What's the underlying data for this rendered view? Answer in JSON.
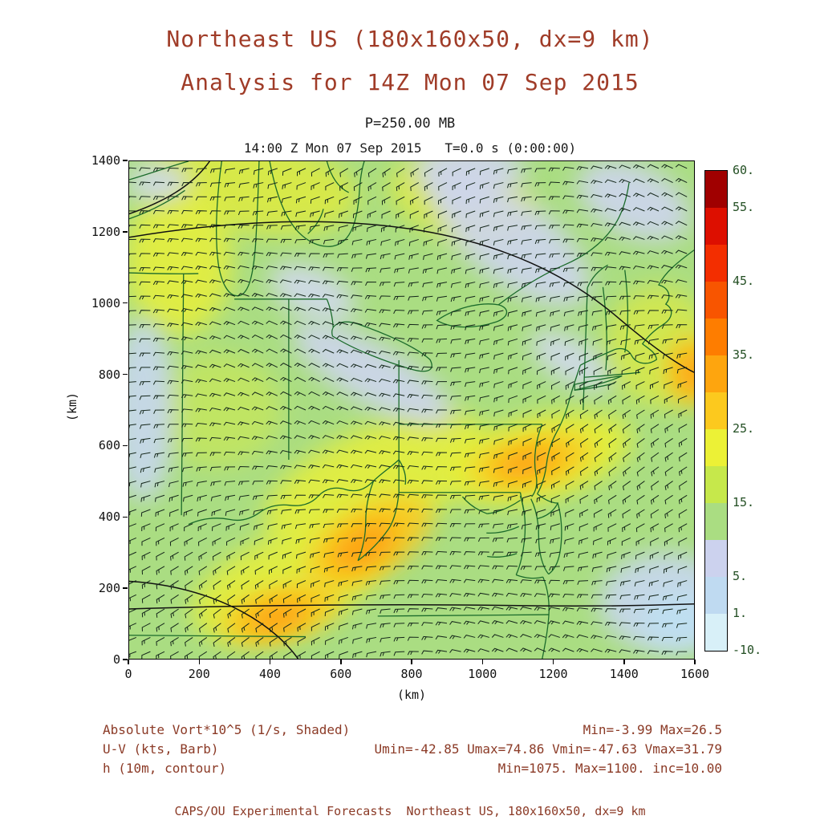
{
  "header": {
    "title_line1": "Northeast US (180x160x50, dx=9 km)",
    "title_line2": "Analysis for 14Z Mon 07 Sep 2015",
    "pressure_level": "P=250.00 MB",
    "time_line": "14:00 Z Mon 07 Sep 2015   T=0.0 s (0:00:00)"
  },
  "legend": {
    "rows": [
      {
        "left": "Absolute Vort*10^5 (1/s, Shaded)",
        "right": "Min=-3.99 Max=26.5"
      },
      {
        "left": "U-V (kts, Barb)",
        "right": "Umin=-42.85 Umax=74.86 Vmin=-47.63 Vmax=31.79"
      },
      {
        "left": "h (10m, contour)",
        "right": "Min=1075. Max=1100. inc=10.00"
      }
    ]
  },
  "footer": {
    "text": "CAPS/OU Experimental Forecasts  Northeast US, 180x160x50, dx=9 km"
  },
  "chart_data": {
    "type": "heatmap",
    "subtype": "meteorological map: shaded vorticity + wind barbs + height contours",
    "domain_name": "Northeast US",
    "grid": "180x160x50, dx=9 km",
    "pressure_mb": 250.0,
    "valid_time": "14:00 Z Mon 07 Sep 2015",
    "forecast_t": "T=0.0 s (0:00:00)",
    "xlabel": "(km)",
    "ylabel": "(km)",
    "xlim": [
      0,
      1600
    ],
    "ylim": [
      0,
      1400
    ],
    "xticks": [
      0,
      200,
      400,
      600,
      800,
      1000,
      1200,
      1400,
      1600
    ],
    "yticks": [
      0,
      200,
      400,
      600,
      800,
      1000,
      1200,
      1400
    ],
    "fields": [
      {
        "name": "Absolute Vort*10^5",
        "units": "1/s",
        "style": "Shaded",
        "min": -3.99,
        "max": 26.5
      },
      {
        "name": "U-V",
        "units": "kts",
        "style": "Barb",
        "umin": -42.85,
        "umax": 74.86,
        "vmin": -47.63,
        "vmax": 31.79
      },
      {
        "name": "h",
        "units": "10m",
        "style": "contour",
        "min": 1075,
        "max": 1100,
        "inc": 10.0
      }
    ],
    "colors": {
      "base_fill": "#aadd82",
      "geography": "#1b6b2b",
      "contour": "#111111",
      "barb": "#14261a",
      "title_text": "#a03c28",
      "legend_text": "#8b3a26",
      "colorbar_label": "#234f23"
    },
    "colorbar": {
      "levels": [
        -10,
        1,
        5,
        10,
        15,
        20,
        25,
        30,
        35,
        40,
        45,
        50,
        55,
        60
      ],
      "colors_bottom_to_top": [
        "#d8f0f8",
        "#bfdaf1",
        "#ccd2ee",
        "#aadd82",
        "#c6e84b",
        "#ecf136",
        "#fcc91e",
        "#fea50e",
        "#fe7d00",
        "#f85500",
        "#f32e00",
        "#dd0f00",
        "#a00000"
      ],
      "labels": [
        {
          "text": "60.",
          "level": 60
        },
        {
          "text": "55.",
          "level": 55
        },
        {
          "text": "45.",
          "level": 45
        },
        {
          "text": "35.",
          "level": 35
        },
        {
          "text": "25.",
          "level": 25
        },
        {
          "text": "15.",
          "level": 15
        },
        {
          "text": "5.",
          "level": 5
        },
        {
          "text": "1.",
          "level": 1
        },
        {
          "text": "-10.",
          "level": -10
        }
      ]
    },
    "shaded_regions": [
      {
        "cx": 350,
        "cy": 1330,
        "rx": 300,
        "ry": 130,
        "rot": -8,
        "color": "#dcea44"
      },
      {
        "cx": 140,
        "cy": 1120,
        "rx": 150,
        "ry": 210,
        "rot": 0,
        "color": "#e4ee3e"
      },
      {
        "cx": 940,
        "cy": 1290,
        "rx": 210,
        "ry": 110,
        "rot": -15,
        "color": "#dcea44"
      },
      {
        "cx": 700,
        "cy": 500,
        "rx": 340,
        "ry": 150,
        "rot": 24,
        "color": "#e4ee3e"
      },
      {
        "cx": 1160,
        "cy": 565,
        "rx": 270,
        "ry": 115,
        "rot": 14,
        "color": "#e8ef38"
      },
      {
        "cx": 450,
        "cy": 215,
        "rx": 290,
        "ry": 135,
        "rot": 22,
        "color": "#e4ee3e"
      },
      {
        "cx": 250,
        "cy": 700,
        "rx": 180,
        "ry": 160,
        "rot": 0,
        "color": "#c2e560"
      },
      {
        "cx": 1500,
        "cy": 880,
        "rx": 150,
        "ry": 170,
        "rot": 0,
        "color": "#d4e84c"
      },
      {
        "cx": 1080,
        "cy": 1180,
        "rx": 270,
        "ry": 120,
        "rot": -38,
        "color": "#cdd5ee"
      },
      {
        "cx": 960,
        "cy": 1370,
        "rx": 160,
        "ry": 90,
        "rot": 0,
        "color": "#cdd5ee"
      },
      {
        "cx": 1430,
        "cy": 1290,
        "rx": 170,
        "ry": 100,
        "rot": -25,
        "color": "#cdd5ee"
      },
      {
        "cx": 40,
        "cy": 700,
        "rx": 90,
        "ry": 260,
        "rot": 0,
        "color": "#c8d7ef"
      },
      {
        "cx": 690,
        "cy": 800,
        "rx": 260,
        "ry": 85,
        "rot": -30,
        "color": "#cdd5ee"
      },
      {
        "cx": 1250,
        "cy": 840,
        "rx": 130,
        "ry": 60,
        "rot": -32,
        "color": "#d2d9ee"
      },
      {
        "cx": 520,
        "cy": 1030,
        "rx": 130,
        "ry": 70,
        "rot": -25,
        "color": "#d2d9ee"
      },
      {
        "cx": 1520,
        "cy": 160,
        "rx": 190,
        "ry": 140,
        "rot": 0,
        "color": "#c8d7ef"
      },
      {
        "cx": 1560,
        "cy": 110,
        "rx": 110,
        "ry": 80,
        "rot": 0,
        "color": "#bfe0f2"
      },
      {
        "cx": 85,
        "cy": 1340,
        "rx": 90,
        "ry": 60,
        "rot": 0,
        "color": "#ccd8ef"
      },
      {
        "cx": 1140,
        "cy": 555,
        "rx": 175,
        "ry": 70,
        "rot": 12,
        "color": "#fcc91e"
      },
      {
        "cx": 680,
        "cy": 330,
        "rx": 195,
        "ry": 95,
        "rot": 30,
        "color": "#fcc91e"
      },
      {
        "cx": 430,
        "cy": 130,
        "rx": 175,
        "ry": 70,
        "rot": 15,
        "color": "#fcc91e"
      },
      {
        "cx": 1595,
        "cy": 810,
        "rx": 75,
        "ry": 95,
        "rot": 0,
        "color": "#fcc91e"
      },
      {
        "cx": 1130,
        "cy": 550,
        "rx": 95,
        "ry": 36,
        "rot": 12,
        "color": "#fe9d0c"
      },
      {
        "cx": 665,
        "cy": 315,
        "rx": 100,
        "ry": 52,
        "rot": 30,
        "color": "#fe9d0c"
      },
      {
        "cx": 420,
        "cy": 115,
        "rx": 92,
        "ry": 40,
        "rot": 15,
        "color": "#fe9d0c"
      },
      {
        "cx": 1600,
        "cy": 805,
        "rx": 42,
        "ry": 58,
        "rot": 0,
        "color": "#fe9d0c"
      }
    ],
    "wind_barbs": {
      "spacing_km": 40,
      "staff_len_km": 26,
      "tick_len_km": 11
    }
  }
}
